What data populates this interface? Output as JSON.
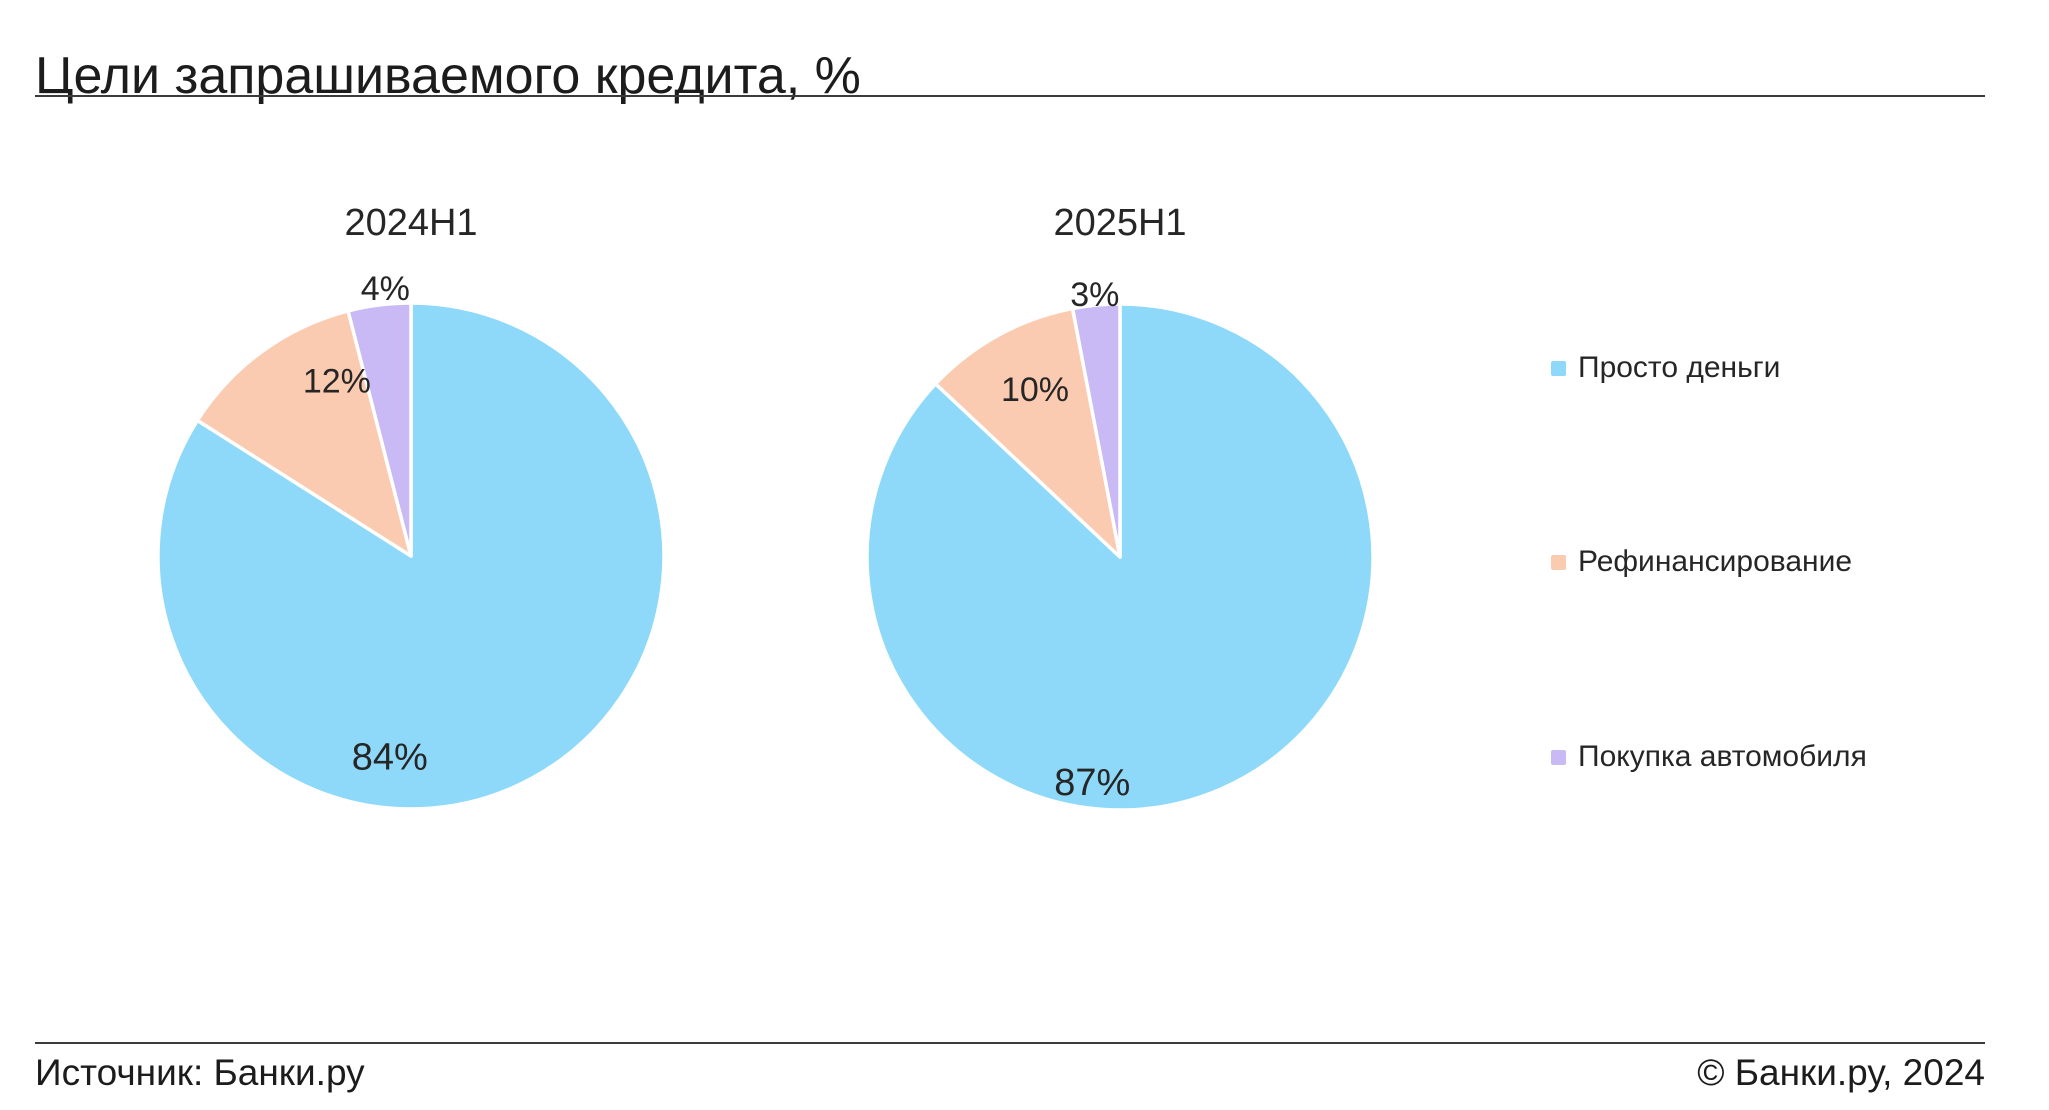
{
  "header": {
    "title": "Цели запрашиваемого кредита, %"
  },
  "chart_data": {
    "type": "pie",
    "title": "Цели запрашиваемого кредита, %",
    "unit": "%",
    "legend": [
      "Просто деньги",
      "Рефинансирование",
      "Покупка автомобиля"
    ],
    "legend_position": "right",
    "colors": [
      "#8ED9F9",
      "#FBCBB1",
      "#C9B9F4"
    ],
    "pies": [
      {
        "label": "2024H1",
        "values": [
          84,
          12,
          4
        ]
      },
      {
        "label": "2025H1",
        "values": [
          87,
          10,
          3
        ]
      }
    ]
  },
  "footer": {
    "source": "Источник: Банки.ру",
    "copyright": "© Банки.ру, 2024"
  }
}
